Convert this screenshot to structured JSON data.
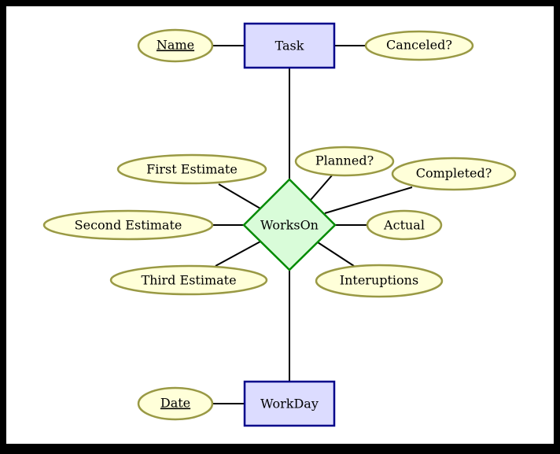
{
  "diagram": {
    "type": "entity-relationship",
    "colors": {
      "frame": "#000000",
      "background": "#ffffff",
      "entity_fill": "#dcdcff",
      "entity_stroke": "#00008b",
      "relationship_fill": "#d9fcd9",
      "relationship_stroke": "#008b00",
      "attribute_fill": "#ffffd9",
      "attribute_stroke": "#999944",
      "line": "#000000"
    },
    "entities": [
      {
        "id": "task",
        "label": "Task"
      },
      {
        "id": "workday",
        "label": "WorkDay"
      }
    ],
    "relationships": [
      {
        "id": "workson",
        "label": "WorksOn"
      }
    ],
    "attributes": [
      {
        "id": "name",
        "label": "Name",
        "key": true,
        "of": "task"
      },
      {
        "id": "canceled",
        "label": "Canceled?",
        "key": false,
        "of": "task"
      },
      {
        "id": "first",
        "label": "First Estimate",
        "key": false,
        "of": "workson"
      },
      {
        "id": "second",
        "label": "Second Estimate",
        "key": false,
        "of": "workson"
      },
      {
        "id": "third",
        "label": "Third Estimate",
        "key": false,
        "of": "workson"
      },
      {
        "id": "planned",
        "label": "Planned?",
        "key": false,
        "of": "workson"
      },
      {
        "id": "completed",
        "label": "Completed?",
        "key": false,
        "of": "workson"
      },
      {
        "id": "actual",
        "label": "Actual",
        "key": false,
        "of": "workson"
      },
      {
        "id": "interuptions",
        "label": "Interuptions",
        "key": false,
        "of": "workson"
      },
      {
        "id": "date",
        "label": "Date",
        "key": true,
        "of": "workday"
      }
    ],
    "links": [
      {
        "from": "task",
        "to": "workson"
      },
      {
        "from": "workson",
        "to": "workday"
      }
    ]
  }
}
